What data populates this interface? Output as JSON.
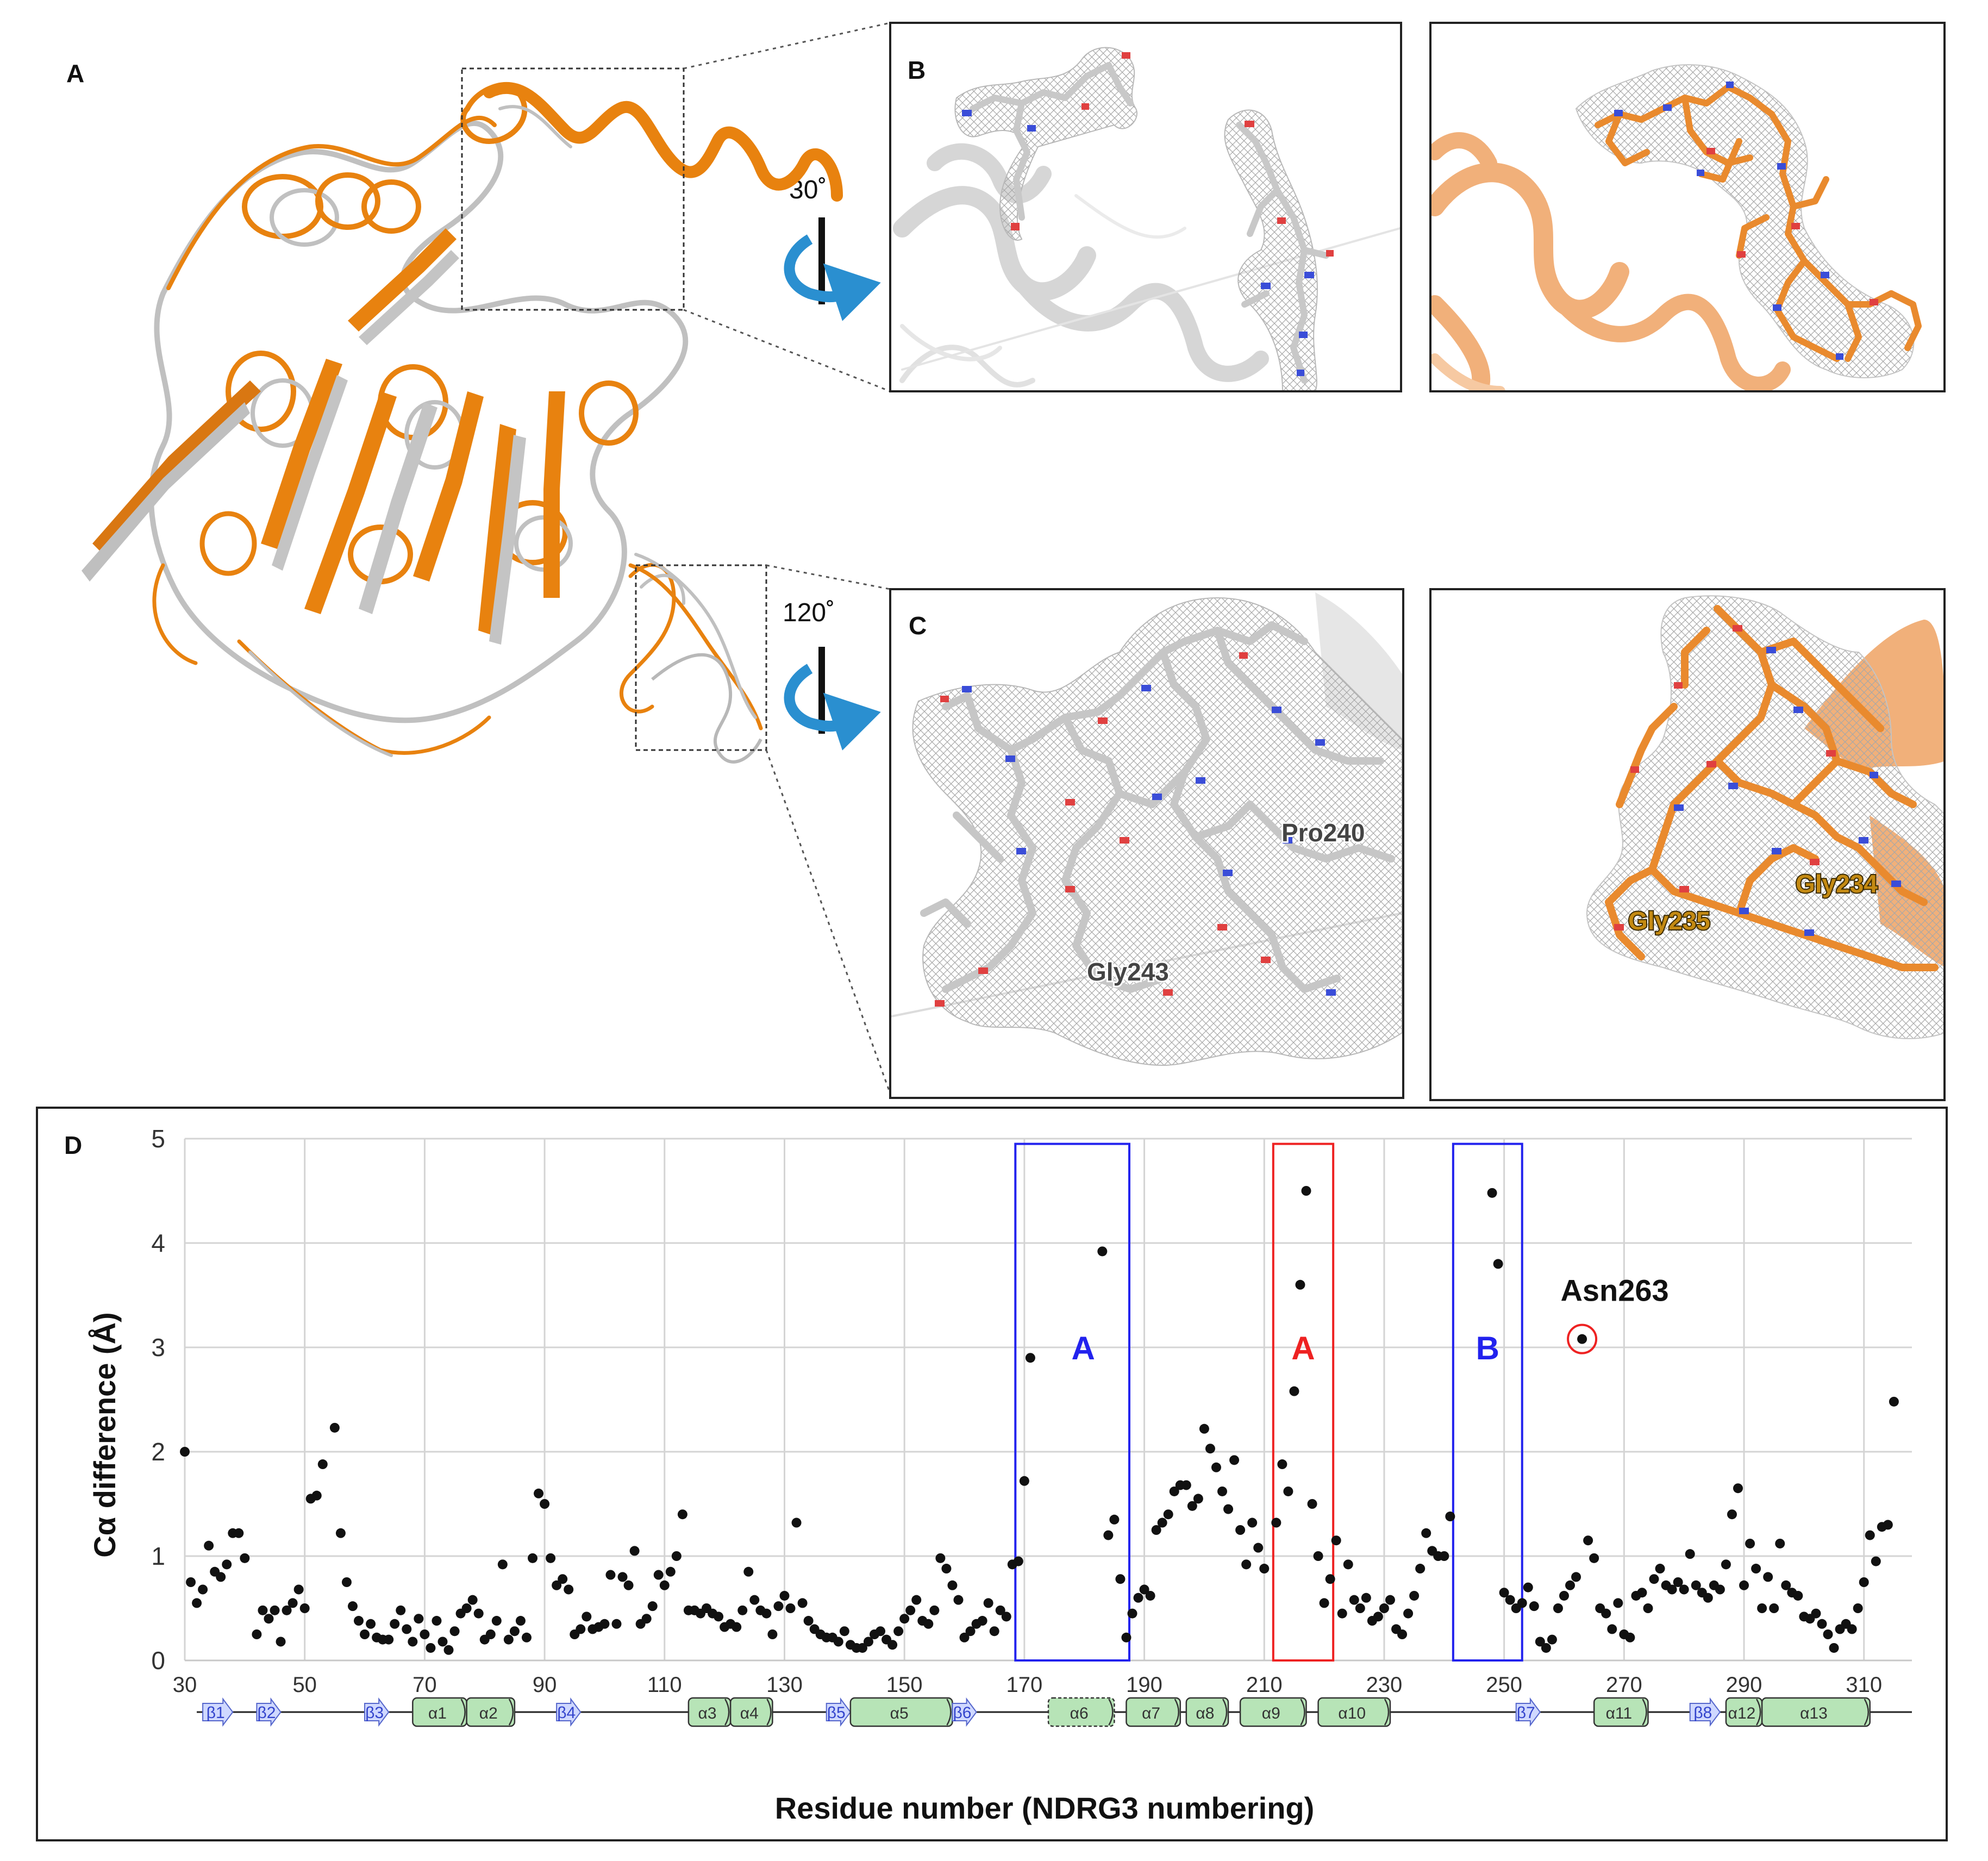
{
  "panels": {
    "a": {
      "letter": "A"
    },
    "b": {
      "letter": "B",
      "rotation": "30˚"
    },
    "c": {
      "letter": "C",
      "rotation": "120˚",
      "labels": {
        "pro240": "Pro240",
        "gly243": "Gly243",
        "gly234": "Gly234",
        "gly235": "Gly235"
      }
    },
    "d": {
      "letter": "D"
    }
  },
  "colors": {
    "orange": "#e8820f",
    "gray": "#b8b8b8",
    "carbon_orange": "#e98a2e",
    "nitrogen": "#3a4dd8",
    "oxygen": "#e04040",
    "mesh": "#9a9a9a",
    "box_blue": "#2222ee",
    "box_red": "#ee2222",
    "sse_fill": "#b7e4b7"
  },
  "chart_data": {
    "type": "scatter",
    "xlabel": "Residue number (NDRG3  numbering)",
    "ylabel": "Cα difference (Å)",
    "xlim": [
      30,
      318
    ],
    "ylim": [
      0,
      5
    ],
    "x_ticks": [
      30,
      50,
      70,
      90,
      110,
      130,
      150,
      170,
      190,
      210,
      230,
      250,
      270,
      290,
      310
    ],
    "y_ticks": [
      0,
      1,
      2,
      3,
      4,
      5
    ],
    "grid": true,
    "regions": [
      {
        "label": "A",
        "color": "blue",
        "x_start": 168.5,
        "x_end": 187.5
      },
      {
        "label": "A",
        "color": "red",
        "x_start": 211.5,
        "x_end": 221.5
      },
      {
        "label": "B",
        "color": "blue",
        "x_start": 241.5,
        "x_end": 253
      }
    ],
    "annotation": {
      "text": "Asn263",
      "x": 263,
      "y": 3.08
    },
    "points": [
      [
        30,
        2.0
      ],
      [
        31,
        0.75
      ],
      [
        32,
        0.55
      ],
      [
        33,
        0.68
      ],
      [
        34,
        1.1
      ],
      [
        35,
        0.85
      ],
      [
        36,
        0.8
      ],
      [
        37,
        0.92
      ],
      [
        38,
        1.22
      ],
      [
        39,
        1.22
      ],
      [
        40,
        0.98
      ],
      [
        42,
        0.25
      ],
      [
        43,
        0.48
      ],
      [
        44,
        0.4
      ],
      [
        45,
        0.48
      ],
      [
        46,
        0.18
      ],
      [
        47,
        0.48
      ],
      [
        48,
        0.55
      ],
      [
        49,
        0.68
      ],
      [
        50,
        0.5
      ],
      [
        51,
        1.55
      ],
      [
        52,
        1.58
      ],
      [
        53,
        1.88
      ],
      [
        55,
        2.23
      ],
      [
        56,
        1.22
      ],
      [
        57,
        0.75
      ],
      [
        58,
        0.52
      ],
      [
        59,
        0.38
      ],
      [
        60,
        0.25
      ],
      [
        61,
        0.35
      ],
      [
        62,
        0.22
      ],
      [
        63,
        0.2
      ],
      [
        64,
        0.2
      ],
      [
        65,
        0.35
      ],
      [
        66,
        0.48
      ],
      [
        67,
        0.3
      ],
      [
        68,
        0.18
      ],
      [
        69,
        0.4
      ],
      [
        70,
        0.25
      ],
      [
        71,
        0.12
      ],
      [
        72,
        0.38
      ],
      [
        73,
        0.18
      ],
      [
        74,
        0.1
      ],
      [
        75,
        0.28
      ],
      [
        76,
        0.45
      ],
      [
        77,
        0.5
      ],
      [
        78,
        0.58
      ],
      [
        79,
        0.45
      ],
      [
        80,
        0.2
      ],
      [
        81,
        0.25
      ],
      [
        82,
        0.38
      ],
      [
        83,
        0.92
      ],
      [
        84,
        0.2
      ],
      [
        85,
        0.28
      ],
      [
        86,
        0.38
      ],
      [
        87,
        0.22
      ],
      [
        88,
        0.98
      ],
      [
        89,
        1.6
      ],
      [
        90,
        1.5
      ],
      [
        91,
        0.98
      ],
      [
        92,
        0.72
      ],
      [
        93,
        0.78
      ],
      [
        94,
        0.68
      ],
      [
        95,
        0.25
      ],
      [
        96,
        0.3
      ],
      [
        97,
        0.42
      ],
      [
        98,
        0.3
      ],
      [
        99,
        0.32
      ],
      [
        100,
        0.35
      ],
      [
        101,
        0.82
      ],
      [
        102,
        0.35
      ],
      [
        103,
        0.8
      ],
      [
        104,
        0.72
      ],
      [
        105,
        1.05
      ],
      [
        106,
        0.35
      ],
      [
        107,
        0.4
      ],
      [
        108,
        0.52
      ],
      [
        109,
        0.82
      ],
      [
        110,
        0.72
      ],
      [
        111,
        0.85
      ],
      [
        112,
        1.0
      ],
      [
        113,
        1.4
      ],
      [
        114,
        0.48
      ],
      [
        115,
        0.48
      ],
      [
        116,
        0.45
      ],
      [
        117,
        0.5
      ],
      [
        118,
        0.45
      ],
      [
        119,
        0.42
      ],
      [
        120,
        0.32
      ],
      [
        121,
        0.35
      ],
      [
        122,
        0.32
      ],
      [
        123,
        0.48
      ],
      [
        124,
        0.85
      ],
      [
        125,
        0.58
      ],
      [
        126,
        0.48
      ],
      [
        127,
        0.45
      ],
      [
        128,
        0.25
      ],
      [
        129,
        0.52
      ],
      [
        130,
        0.62
      ],
      [
        131,
        0.5
      ],
      [
        132,
        1.32
      ],
      [
        133,
        0.55
      ],
      [
        134,
        0.38
      ],
      [
        135,
        0.3
      ],
      [
        136,
        0.25
      ],
      [
        137,
        0.22
      ],
      [
        138,
        0.22
      ],
      [
        139,
        0.18
      ],
      [
        140,
        0.28
      ],
      [
        141,
        0.15
      ],
      [
        142,
        0.12
      ],
      [
        143,
        0.12
      ],
      [
        144,
        0.18
      ],
      [
        145,
        0.25
      ],
      [
        146,
        0.28
      ],
      [
        147,
        0.2
      ],
      [
        148,
        0.15
      ],
      [
        149,
        0.28
      ],
      [
        150,
        0.4
      ],
      [
        151,
        0.48
      ],
      [
        152,
        0.58
      ],
      [
        153,
        0.38
      ],
      [
        154,
        0.35
      ],
      [
        155,
        0.48
      ],
      [
        156,
        0.98
      ],
      [
        157,
        0.88
      ],
      [
        158,
        0.72
      ],
      [
        159,
        0.58
      ],
      [
        160,
        0.22
      ],
      [
        161,
        0.28
      ],
      [
        162,
        0.35
      ],
      [
        163,
        0.38
      ],
      [
        164,
        0.55
      ],
      [
        165,
        0.28
      ],
      [
        166,
        0.48
      ],
      [
        167,
        0.42
      ],
      [
        168,
        0.92
      ],
      [
        169,
        0.95
      ],
      [
        170,
        1.72
      ],
      [
        171,
        2.9
      ],
      [
        183,
        3.92
      ],
      [
        184,
        1.2
      ],
      [
        185,
        1.35
      ],
      [
        186,
        0.78
      ],
      [
        187,
        0.22
      ],
      [
        188,
        0.45
      ],
      [
        189,
        0.6
      ],
      [
        190,
        0.68
      ],
      [
        191,
        0.62
      ],
      [
        192,
        1.25
      ],
      [
        193,
        1.32
      ],
      [
        194,
        1.4
      ],
      [
        195,
        1.62
      ],
      [
        196,
        1.68
      ],
      [
        197,
        1.68
      ],
      [
        198,
        1.48
      ],
      [
        199,
        1.55
      ],
      [
        200,
        2.22
      ],
      [
        201,
        2.03
      ],
      [
        202,
        1.85
      ],
      [
        203,
        1.62
      ],
      [
        204,
        1.45
      ],
      [
        205,
        1.92
      ],
      [
        206,
        1.25
      ],
      [
        207,
        0.92
      ],
      [
        208,
        1.32
      ],
      [
        209,
        1.08
      ],
      [
        210,
        0.88
      ],
      [
        212,
        1.32
      ],
      [
        213,
        1.88
      ],
      [
        214,
        1.62
      ],
      [
        215,
        2.58
      ],
      [
        216,
        3.6
      ],
      [
        217,
        4.5
      ],
      [
        218,
        1.5
      ],
      [
        219,
        1.0
      ],
      [
        220,
        0.55
      ],
      [
        221,
        0.78
      ],
      [
        222,
        1.15
      ],
      [
        223,
        0.45
      ],
      [
        224,
        0.92
      ],
      [
        225,
        0.58
      ],
      [
        226,
        0.5
      ],
      [
        227,
        0.6
      ],
      [
        228,
        0.38
      ],
      [
        229,
        0.42
      ],
      [
        230,
        0.5
      ],
      [
        231,
        0.58
      ],
      [
        232,
        0.3
      ],
      [
        233,
        0.25
      ],
      [
        234,
        0.45
      ],
      [
        235,
        0.62
      ],
      [
        236,
        0.88
      ],
      [
        237,
        1.22
      ],
      [
        238,
        1.05
      ],
      [
        239,
        1.0
      ],
      [
        240,
        1.0
      ],
      [
        241,
        1.38
      ],
      [
        248,
        4.48
      ],
      [
        249,
        3.8
      ],
      [
        250,
        0.65
      ],
      [
        251,
        0.58
      ],
      [
        252,
        0.5
      ],
      [
        253,
        0.55
      ],
      [
        254,
        0.7
      ],
      [
        255,
        0.52
      ],
      [
        256,
        0.18
      ],
      [
        257,
        0.12
      ],
      [
        258,
        0.2
      ],
      [
        259,
        0.5
      ],
      [
        260,
        0.62
      ],
      [
        261,
        0.72
      ],
      [
        262,
        0.8
      ],
      [
        263,
        3.08
      ],
      [
        264,
        1.15
      ],
      [
        265,
        0.98
      ],
      [
        266,
        0.5
      ],
      [
        267,
        0.45
      ],
      [
        268,
        0.3
      ],
      [
        269,
        0.55
      ],
      [
        270,
        0.25
      ],
      [
        271,
        0.22
      ],
      [
        272,
        0.62
      ],
      [
        273,
        0.65
      ],
      [
        274,
        0.5
      ],
      [
        275,
        0.78
      ],
      [
        276,
        0.88
      ],
      [
        277,
        0.72
      ],
      [
        278,
        0.68
      ],
      [
        279,
        0.75
      ],
      [
        280,
        0.68
      ],
      [
        281,
        1.02
      ],
      [
        282,
        0.72
      ],
      [
        283,
        0.65
      ],
      [
        284,
        0.6
      ],
      [
        285,
        0.72
      ],
      [
        286,
        0.68
      ],
      [
        287,
        0.92
      ],
      [
        288,
        1.4
      ],
      [
        289,
        1.65
      ],
      [
        290,
        0.72
      ],
      [
        291,
        1.12
      ],
      [
        292,
        0.88
      ],
      [
        293,
        0.5
      ],
      [
        294,
        0.8
      ],
      [
        295,
        0.5
      ],
      [
        296,
        1.12
      ],
      [
        297,
        0.72
      ],
      [
        298,
        0.65
      ],
      [
        299,
        0.62
      ],
      [
        300,
        0.42
      ],
      [
        301,
        0.4
      ],
      [
        302,
        0.45
      ],
      [
        303,
        0.35
      ],
      [
        304,
        0.25
      ],
      [
        305,
        0.12
      ],
      [
        306,
        0.3
      ],
      [
        307,
        0.35
      ],
      [
        308,
        0.3
      ],
      [
        309,
        0.5
      ],
      [
        310,
        0.75
      ],
      [
        311,
        1.2
      ],
      [
        312,
        0.95
      ],
      [
        313,
        1.28
      ],
      [
        314,
        1.3
      ],
      [
        315,
        2.48
      ]
    ],
    "secondary_structure": [
      {
        "type": "strand",
        "label": "β1",
        "start": 33,
        "end": 38
      },
      {
        "type": "strand",
        "label": "β2",
        "start": 42,
        "end": 46
      },
      {
        "type": "strand",
        "label": "β3",
        "start": 60,
        "end": 64
      },
      {
        "type": "helix",
        "label": "α1",
        "start": 68,
        "end": 77
      },
      {
        "type": "helix",
        "label": "α2",
        "start": 77,
        "end": 85
      },
      {
        "type": "strand",
        "label": "β4",
        "start": 92,
        "end": 96
      },
      {
        "type": "helix",
        "label": "α3",
        "start": 114,
        "end": 121
      },
      {
        "type": "helix",
        "label": "α4",
        "start": 121,
        "end": 128
      },
      {
        "type": "strand",
        "label": "β5",
        "start": 137,
        "end": 141
      },
      {
        "type": "helix",
        "label": "α5",
        "start": 141,
        "end": 158
      },
      {
        "type": "strand",
        "label": "β6",
        "start": 158,
        "end": 162
      },
      {
        "type": "helix",
        "label": "α6",
        "start": 174,
        "end": 185,
        "dashed": true
      },
      {
        "type": "helix",
        "label": "α7",
        "start": 187,
        "end": 196
      },
      {
        "type": "helix",
        "label": "α8",
        "start": 197,
        "end": 204
      },
      {
        "type": "helix",
        "label": "α9",
        "start": 206,
        "end": 217
      },
      {
        "type": "helix",
        "label": "α10",
        "start": 219,
        "end": 231
      },
      {
        "type": "strand",
        "label": "β7",
        "start": 252,
        "end": 256
      },
      {
        "type": "helix",
        "label": "α11",
        "start": 265,
        "end": 274
      },
      {
        "type": "strand",
        "label": "β8",
        "start": 281,
        "end": 286
      },
      {
        "type": "helix",
        "label": "α12",
        "start": 287,
        "end": 293
      },
      {
        "type": "helix",
        "label": "α13",
        "start": 293,
        "end": 311
      }
    ]
  }
}
